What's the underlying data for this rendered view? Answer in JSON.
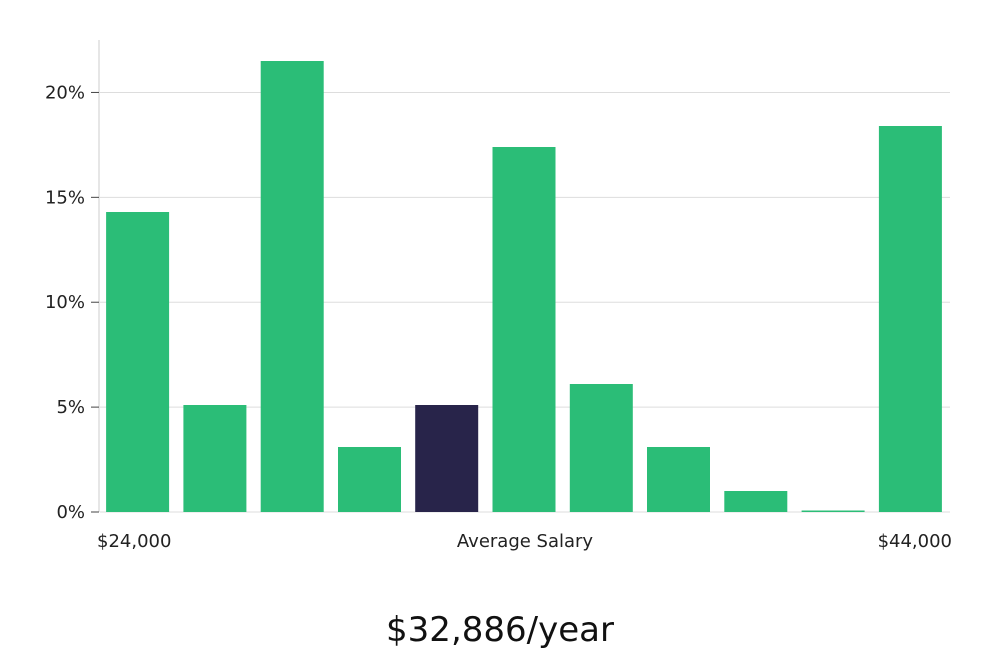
{
  "chart_data": {
    "type": "bar",
    "values": [
      14.3,
      5.1,
      21.5,
      3.1,
      5.1,
      17.4,
      6.1,
      3.1,
      1.0,
      0.05,
      18.4
    ],
    "highlight_index": 4,
    "ylim": [
      0,
      22.5
    ],
    "yticks": [
      0,
      5,
      10,
      15,
      20
    ],
    "ytick_labels": [
      "0%",
      "5%",
      "10%",
      "15%",
      "20%"
    ],
    "x_labels": {
      "left": "$24,000",
      "center": "Average Salary",
      "right": "$44,000"
    },
    "grid": true,
    "colors": {
      "bar": "#2bbd77",
      "highlight": "#28244a",
      "grid": "#dddddd",
      "axis": "#cccccc"
    }
  },
  "headline": "$32,886/year"
}
